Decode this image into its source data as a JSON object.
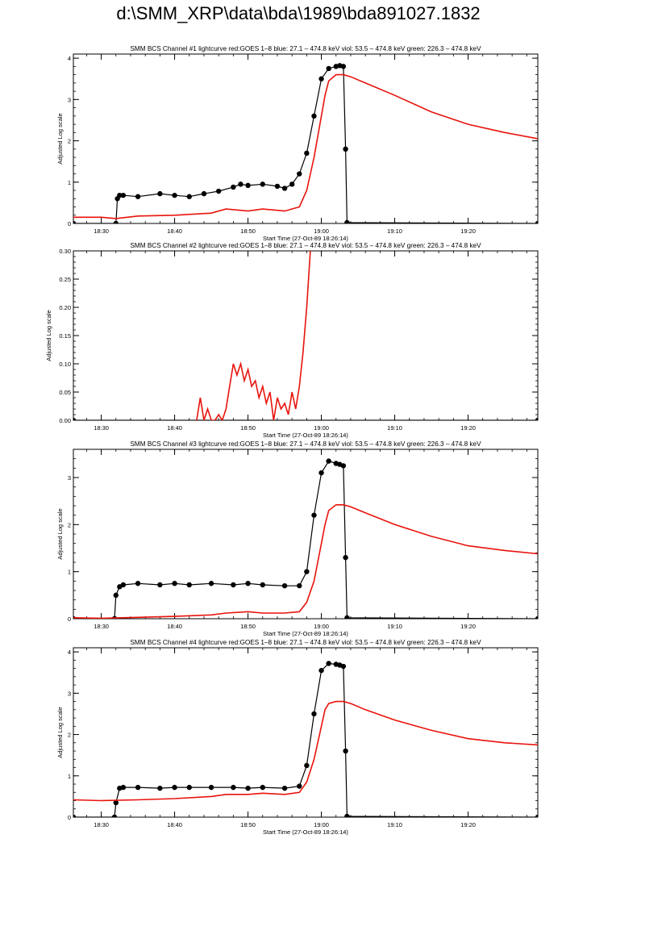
{
  "page": {
    "title": "d:\\SMM_XRP\\data\\bda\\1989\\bda891027.1832"
  },
  "colors": {
    "bcs": "#000000",
    "goes": "#e8130b",
    "axes": "#000000"
  },
  "chart_data": [
    {
      "type": "line",
      "title": "SMM BCS Channel #1 lightcurve  red:GOES 1–8  blue: 27.1 – 474.8 keV  viol: 53.5 – 474.8 keV  green: 226.3 – 474.8 keV",
      "xlabel": "Start Time (27-Oct-89 18:26:14)",
      "ylabel": "Adjusted Log scale",
      "xlim": [
        26.2,
        89.5
      ],
      "ylim": [
        0,
        4.1
      ],
      "xticks": [
        30,
        40,
        50,
        60,
        70,
        80
      ],
      "xtick_labels": [
        "18:30",
        "18:40",
        "18:50",
        "19:00",
        "19:10",
        "19:20"
      ],
      "yticks": [
        0,
        1,
        2,
        3,
        4
      ],
      "ytick_labels": [
        "0",
        "1",
        "2",
        "3",
        "4"
      ],
      "series": [
        {
          "name": "BCS",
          "color": "#000000",
          "marker": "circle",
          "x": [
            26.2,
            32.0,
            32.2,
            32.5,
            33,
            35,
            38,
            40,
            42,
            44,
            46,
            48,
            49,
            50,
            52,
            54,
            55,
            56,
            57,
            58,
            59,
            60,
            61,
            62,
            62.5,
            63,
            63.3,
            63.5,
            89.5
          ],
          "y": [
            0,
            0,
            0.6,
            0.68,
            0.68,
            0.65,
            0.72,
            0.68,
            0.65,
            0.72,
            0.78,
            0.88,
            0.95,
            0.92,
            0.95,
            0.9,
            0.85,
            0.95,
            1.2,
            1.7,
            2.6,
            3.5,
            3.75,
            3.8,
            3.82,
            3.8,
            1.8,
            0.02,
            0
          ]
        },
        {
          "name": "GOES 1–8",
          "color": "#e8130b",
          "marker": "none",
          "x": [
            26.2,
            30,
            32,
            35,
            40,
            45,
            47,
            50,
            52,
            55,
            57,
            58,
            59,
            60,
            60.5,
            61,
            62,
            63,
            64,
            66,
            70,
            75,
            80,
            85,
            89.5
          ],
          "y": [
            0.15,
            0.15,
            0.12,
            0.18,
            0.2,
            0.25,
            0.35,
            0.3,
            0.35,
            0.3,
            0.4,
            0.8,
            1.6,
            2.6,
            3.1,
            3.45,
            3.6,
            3.6,
            3.55,
            3.4,
            3.1,
            2.7,
            2.4,
            2.2,
            2.05
          ]
        }
      ]
    },
    {
      "type": "line",
      "title": "SMM BCS Channel #2 lightcurve  red:GOES 1–8  blue: 27.1 – 474.8 keV  viol: 53.5 – 474.8 keV  green: 226.3 – 474.8 keV",
      "xlabel": "Start Time (27-Oct-89 18:26:14)",
      "ylabel": "Adjusted Log scale",
      "xlim": [
        26.2,
        89.5
      ],
      "ylim": [
        0,
        0.3
      ],
      "xticks": [
        30,
        40,
        50,
        60,
        70,
        80
      ],
      "xtick_labels": [
        "18:30",
        "18:40",
        "18:50",
        "19:00",
        "19:10",
        "19:20"
      ],
      "yticks": [
        0,
        0.05,
        0.1,
        0.15,
        0.2,
        0.25,
        0.3
      ],
      "ytick_labels": [
        "0.00",
        "0.05",
        "0.10",
        "0.15",
        "0.20",
        "0.25",
        "0.30"
      ],
      "series": [
        {
          "name": "BCS",
          "color": "#000000",
          "marker": "circle",
          "x": [
            26.2,
            89.5
          ],
          "y": [
            0,
            0
          ]
        },
        {
          "name": "GOES 1–8",
          "color": "#e8130b",
          "marker": "none",
          "x": [
            43,
            43.5,
            44,
            44.5,
            45,
            45.5,
            46,
            46.5,
            47,
            47.5,
            48,
            48.5,
            49,
            49.5,
            50,
            50.5,
            51,
            51.5,
            52,
            52.5,
            53,
            53.5,
            54,
            54.5,
            55,
            55.5,
            56,
            56.5,
            57,
            57.5,
            58,
            58.5
          ],
          "y": [
            0.0,
            0.04,
            0.0,
            0.02,
            0.0,
            0.0,
            0.01,
            0.0,
            0.02,
            0.06,
            0.1,
            0.08,
            0.1,
            0.07,
            0.09,
            0.06,
            0.07,
            0.04,
            0.06,
            0.03,
            0.05,
            0.0,
            0.04,
            0.02,
            0.03,
            0.01,
            0.05,
            0.02,
            0.06,
            0.12,
            0.2,
            0.3
          ]
        }
      ]
    },
    {
      "type": "line",
      "title": "SMM BCS Channel #3 lightcurve  red:GOES 1–8  blue: 27.1 – 474.8 keV  viol: 53.5 – 474.8 keV  green: 226.3 – 474.8 keV",
      "xlabel": "Start Time (27-Oct-89 18:26:14)",
      "ylabel": "Adjusted Log scale",
      "xlim": [
        26.2,
        89.5
      ],
      "ylim": [
        0,
        3.6
      ],
      "xticks": [
        30,
        40,
        50,
        60,
        70,
        80
      ],
      "xtick_labels": [
        "18:30",
        "18:40",
        "18:50",
        "19:00",
        "19:10",
        "19:20"
      ],
      "yticks": [
        0,
        1,
        2,
        3
      ],
      "ytick_labels": [
        "0",
        "1",
        "2",
        "3"
      ],
      "series": [
        {
          "name": "BCS",
          "color": "#000000",
          "marker": "circle",
          "x": [
            26.2,
            31.8,
            32.0,
            32.5,
            33,
            35,
            38,
            40,
            42,
            45,
            48,
            50,
            52,
            55,
            57,
            58,
            59,
            60,
            61,
            62,
            62.5,
            63,
            63.3,
            63.5,
            89.5
          ],
          "y": [
            0,
            0,
            0.5,
            0.68,
            0.72,
            0.75,
            0.72,
            0.75,
            0.72,
            0.75,
            0.72,
            0.75,
            0.72,
            0.7,
            0.7,
            1.0,
            2.2,
            3.1,
            3.35,
            3.3,
            3.28,
            3.25,
            1.3,
            0.02,
            0
          ]
        },
        {
          "name": "GOES 1–8",
          "color": "#e8130b",
          "marker": "none",
          "x": [
            26.2,
            30,
            35,
            40,
            45,
            47,
            50,
            52,
            55,
            57,
            58,
            59,
            60,
            60.5,
            61,
            62,
            63,
            64,
            66,
            70,
            75,
            80,
            85,
            89.5
          ],
          "y": [
            0.02,
            0.01,
            0.03,
            0.05,
            0.08,
            0.12,
            0.15,
            0.12,
            0.12,
            0.15,
            0.35,
            0.8,
            1.6,
            2.0,
            2.3,
            2.42,
            2.42,
            2.38,
            2.25,
            2.0,
            1.75,
            1.55,
            1.45,
            1.38
          ]
        }
      ]
    },
    {
      "type": "line",
      "title": "SMM BCS Channel #4 lightcurve  red:GOES 1–8  blue: 27.1 – 474.8 keV  viol: 53.5 – 474.8 keV  green: 226.3 – 474.8 keV",
      "xlabel": "Start Time (27-Oct-89 18:26:14)",
      "ylabel": "Adjusted Log scale",
      "xlim": [
        26.2,
        89.5
      ],
      "ylim": [
        0,
        4.1
      ],
      "xticks": [
        30,
        40,
        50,
        60,
        70,
        80
      ],
      "xtick_labels": [
        "18:30",
        "18:40",
        "18:50",
        "19:00",
        "19:10",
        "19:20"
      ],
      "yticks": [
        0,
        1,
        2,
        3,
        4
      ],
      "ytick_labels": [
        "0",
        "1",
        "2",
        "3",
        "4"
      ],
      "series": [
        {
          "name": "BCS",
          "color": "#000000",
          "marker": "circle",
          "x": [
            26.2,
            31.8,
            32.0,
            32.5,
            33,
            35,
            38,
            40,
            42,
            45,
            48,
            50,
            52,
            55,
            57,
            58,
            59,
            60,
            61,
            62,
            62.5,
            63,
            63.3,
            63.5,
            89.5
          ],
          "y": [
            0,
            0,
            0.35,
            0.7,
            0.72,
            0.72,
            0.7,
            0.72,
            0.72,
            0.72,
            0.72,
            0.7,
            0.72,
            0.7,
            0.75,
            1.25,
            2.5,
            3.55,
            3.72,
            3.7,
            3.68,
            3.65,
            1.6,
            0.02,
            0
          ]
        },
        {
          "name": "GOES 1–8",
          "color": "#e8130b",
          "marker": "none",
          "x": [
            26.2,
            30,
            35,
            40,
            45,
            47,
            50,
            52,
            55,
            57,
            58,
            59,
            60,
            60.5,
            61,
            62,
            63,
            64,
            66,
            70,
            75,
            80,
            85,
            89.5
          ],
          "y": [
            0.42,
            0.4,
            0.42,
            0.45,
            0.5,
            0.55,
            0.55,
            0.58,
            0.55,
            0.6,
            0.85,
            1.4,
            2.2,
            2.6,
            2.75,
            2.8,
            2.8,
            2.75,
            2.6,
            2.35,
            2.1,
            1.9,
            1.8,
            1.75
          ]
        }
      ]
    }
  ]
}
